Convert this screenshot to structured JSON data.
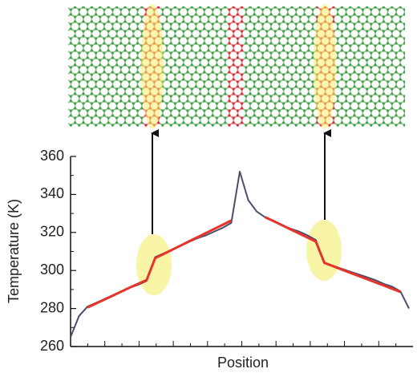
{
  "chart_data": {
    "type": "line",
    "ylabel": "Temperature (K)",
    "xlabel": "Position",
    "ylim": [
      260,
      360
    ],
    "yticks": [
      260,
      280,
      300,
      320,
      340,
      360
    ],
    "categories": [
      null,
      null,
      null,
      null,
      null,
      null,
      null,
      null,
      null,
      null,
      null,
      null,
      null,
      null,
      null,
      null,
      null,
      null,
      null,
      null,
      null,
      null,
      null,
      null,
      null,
      null,
      null,
      null,
      null,
      null,
      null,
      null,
      null,
      null,
      null,
      null,
      null,
      null,
      null,
      null,
      null
    ],
    "series": [
      {
        "color": "#4a4e6a",
        "values": [
          265,
          276,
          281,
          283,
          285,
          287,
          289,
          291,
          292.5,
          294.5,
          307,
          309,
          311,
          313,
          315,
          317,
          318.5,
          320.5,
          322.5,
          325,
          352,
          337,
          331,
          328,
          326,
          324,
          322,
          320.5,
          318.5,
          316,
          304,
          302.5,
          301,
          299.5,
          298,
          296.5,
          295,
          293,
          291.5,
          289,
          280
        ]
      },
      {
        "color": "#e8332a",
        "values": [
          null,
          null,
          280.5,
          282.6,
          284.7,
          286.8,
          288.9,
          291,
          293,
          295,
          306.5,
          308.7,
          310.9,
          313.1,
          315.3,
          317.5,
          319.7,
          321.9,
          324.1,
          326.3,
          null,
          null,
          null,
          328,
          326,
          323.8,
          321.6,
          319.5,
          317.3,
          315.2,
          304,
          302.3,
          300.6,
          298.9,
          297.2,
          295.5,
          293.8,
          292.1,
          290.4,
          288.7,
          null
        ]
      }
    ]
  }
}
